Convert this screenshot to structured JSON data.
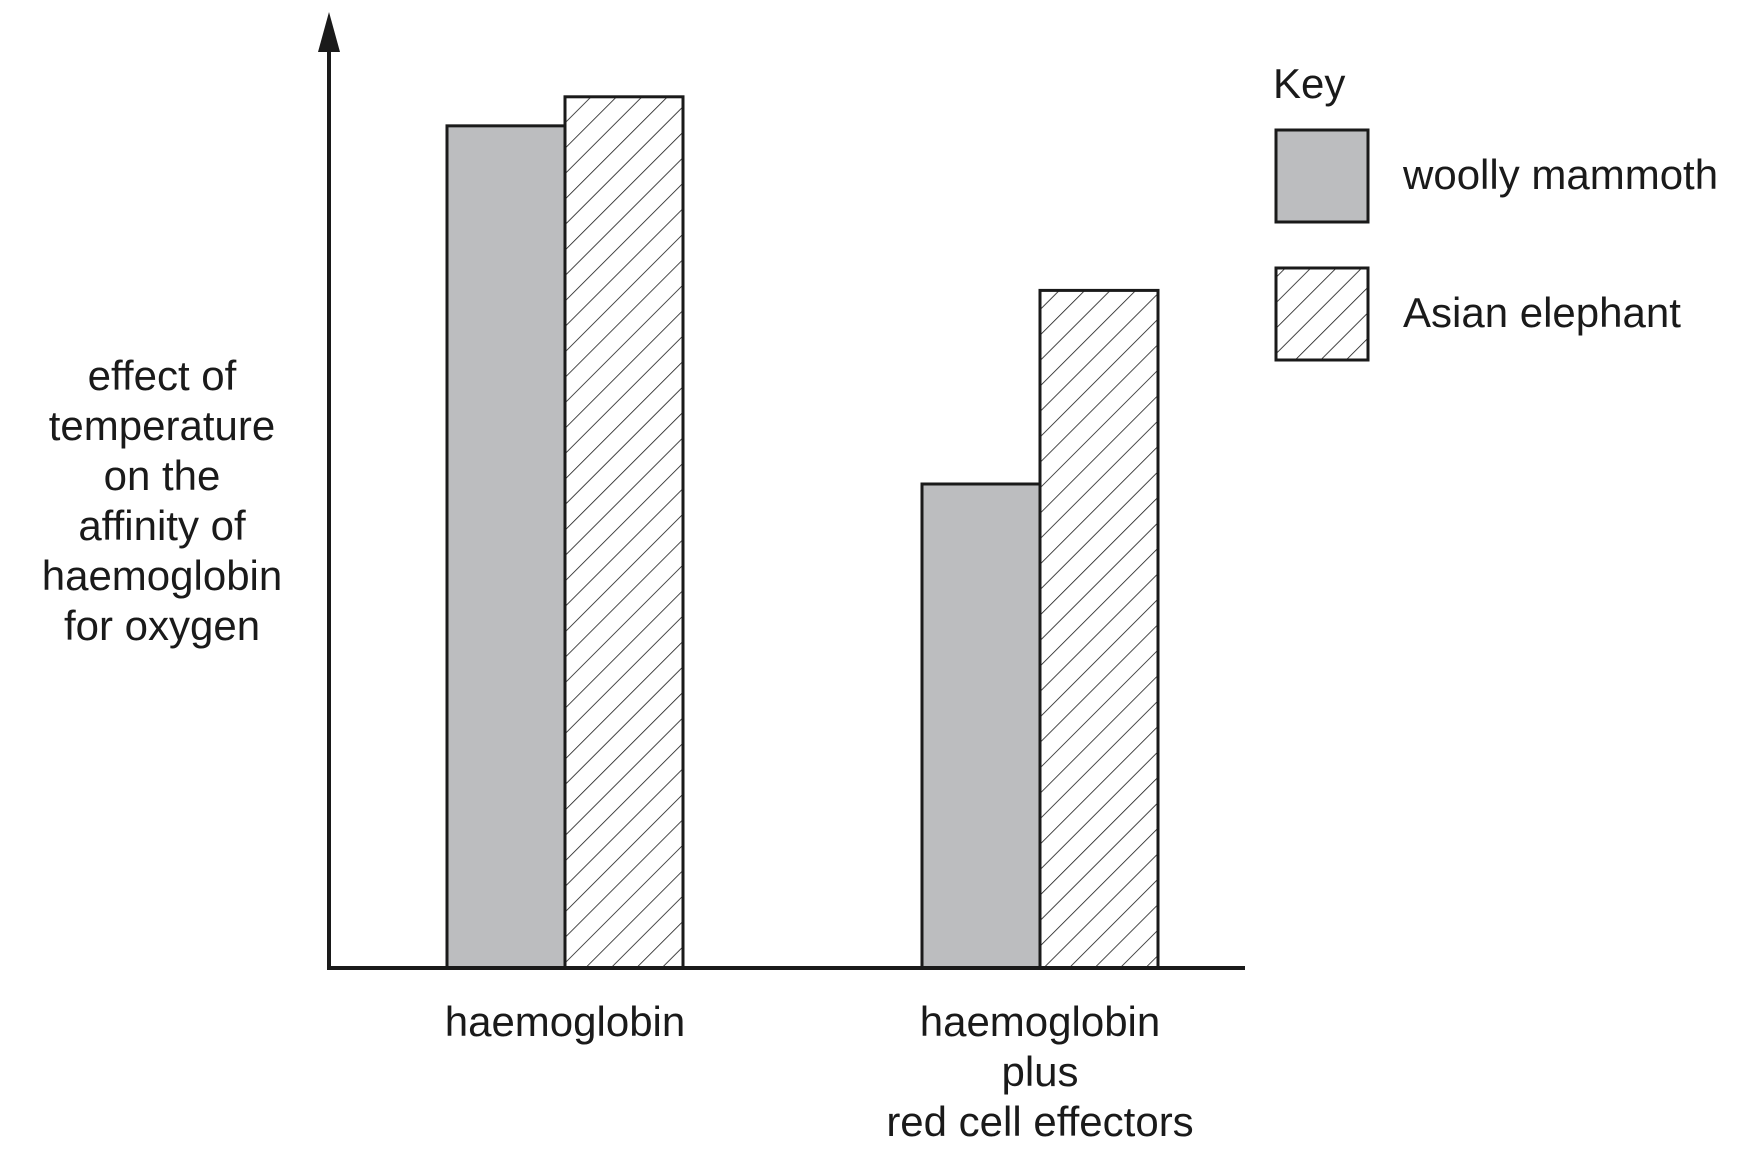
{
  "chart_data": {
    "type": "bar",
    "title": "",
    "ylabel_lines": [
      "effect of",
      "temperature",
      "on the",
      "affinity of",
      "haemoglobin",
      "for oxygen"
    ],
    "xlabel": "",
    "categories": [
      [
        "haemoglobin"
      ],
      [
        "haemoglobin",
        "plus",
        "red cell effectors"
      ]
    ],
    "series": [
      {
        "name": "woolly mammoth",
        "values": [
          0.87,
          0.5
        ],
        "fill": "#bcbdbf",
        "pattern": "solid"
      },
      {
        "name": "Asian elephant",
        "values": [
          0.9,
          0.7
        ],
        "fill": "#ffffff",
        "pattern": "hatch"
      }
    ],
    "ylim": [
      0,
      1
    ],
    "ticks": "none",
    "grid": false,
    "legend": {
      "title": "Key",
      "placement": "top-right"
    },
    "colors": {
      "axis": "#1a1a1a",
      "bar_stroke": "#1a1a1a",
      "hatch": "#1a1a1a"
    }
  }
}
